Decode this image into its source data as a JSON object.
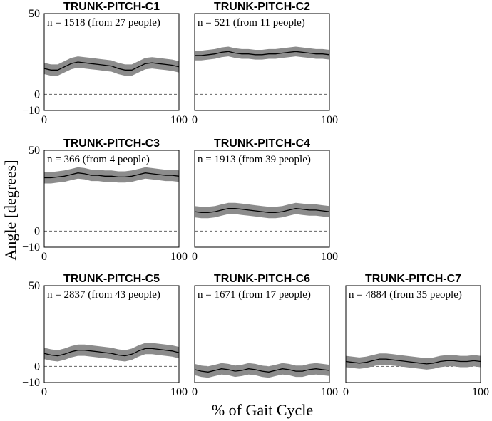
{
  "figure": {
    "ylabel": "Angle [degrees]",
    "xlabel": "% of Gait Cycle"
  },
  "colors": {
    "band": "#8c8c8c",
    "line": "#000000",
    "zero_line": "#666666",
    "frame": "#000000"
  },
  "chart_data": [
    {
      "type": "line",
      "title": "TRUNK-PITCH-C1",
      "annotation": "n = 1518 (from 27 people)",
      "xlim": [
        0,
        100
      ],
      "ylim": [
        -10,
        50
      ],
      "xticks": [
        "0",
        "100"
      ],
      "yticks": [
        "50",
        "0",
        "−10"
      ],
      "x": [
        0,
        5,
        10,
        15,
        20,
        25,
        30,
        35,
        40,
        45,
        50,
        55,
        60,
        65,
        70,
        75,
        80,
        85,
        90,
        95,
        100
      ],
      "series": [
        {
          "values": [
            16,
            15,
            15,
            17,
            19,
            20,
            19.5,
            19,
            18.5,
            18,
            17.5,
            16,
            15,
            15,
            17,
            19,
            19.5,
            19,
            18.5,
            18,
            17
          ],
          "band": 3.5
        }
      ],
      "zero_line": true,
      "grid": false
    },
    {
      "type": "line",
      "title": "TRUNK-PITCH-C2",
      "annotation": "n = 521 (from 11 people)",
      "xlim": [
        0,
        100
      ],
      "ylim": [
        -10,
        50
      ],
      "xticks": [
        "0",
        "100"
      ],
      "yticks": [],
      "x": [
        0,
        5,
        10,
        15,
        20,
        25,
        30,
        35,
        40,
        45,
        50,
        55,
        60,
        65,
        70,
        75,
        80,
        85,
        90,
        95,
        100
      ],
      "series": [
        {
          "values": [
            24,
            24,
            24.5,
            25,
            26,
            26.5,
            25.5,
            25,
            25,
            24.5,
            24.5,
            25,
            25,
            25.5,
            26,
            26.5,
            26,
            25.5,
            25,
            25,
            24.5
          ],
          "band": 3
        }
      ],
      "zero_line": true,
      "grid": false
    },
    {
      "type": "line",
      "title": "TRUNK-PITCH-C3",
      "annotation": "n = 366 (from 4 people)",
      "xlim": [
        0,
        100
      ],
      "ylim": [
        -10,
        50
      ],
      "xticks": [
        "0",
        "100"
      ],
      "yticks": [
        "50",
        "0",
        "−10"
      ],
      "x": [
        0,
        5,
        10,
        15,
        20,
        25,
        30,
        35,
        40,
        45,
        50,
        55,
        60,
        65,
        70,
        75,
        80,
        85,
        90,
        95,
        100
      ],
      "series": [
        {
          "values": [
            33,
            33,
            33.5,
            34,
            35,
            36,
            35.5,
            34.5,
            34.5,
            34,
            34,
            33.5,
            33.5,
            34,
            35,
            36,
            35.5,
            35,
            34.5,
            34.5,
            34
          ],
          "band": 3.5
        }
      ],
      "zero_line": true,
      "grid": false
    },
    {
      "type": "line",
      "title": "TRUNK-PITCH-C4",
      "annotation": "n = 1913 (from 39 people)",
      "xlim": [
        0,
        100
      ],
      "ylim": [
        -10,
        50
      ],
      "xticks": [
        "0",
        "100"
      ],
      "yticks": [],
      "x": [
        0,
        5,
        10,
        15,
        20,
        25,
        30,
        35,
        40,
        45,
        50,
        55,
        60,
        65,
        70,
        75,
        80,
        85,
        90,
        95,
        100
      ],
      "series": [
        {
          "values": [
            12,
            11.5,
            11.5,
            12,
            13,
            14,
            14,
            13.5,
            13,
            12.5,
            12,
            11.5,
            11.5,
            12,
            13,
            14,
            13.5,
            13,
            13,
            12.5,
            12
          ],
          "band": 3.5
        }
      ],
      "zero_line": true,
      "grid": false
    },
    {
      "type": "line",
      "title": "TRUNK-PITCH-C5",
      "annotation": "n = 2837 (from 43 people)",
      "xlim": [
        0,
        100
      ],
      "ylim": [
        -10,
        50
      ],
      "xticks": [
        "0",
        "100"
      ],
      "yticks": [
        "50",
        "0",
        "−10"
      ],
      "x": [
        0,
        5,
        10,
        15,
        20,
        25,
        30,
        35,
        40,
        45,
        50,
        55,
        60,
        65,
        70,
        75,
        80,
        85,
        90,
        95,
        100
      ],
      "series": [
        {
          "values": [
            8,
            7,
            6.5,
            7.5,
            9,
            10,
            10,
            9.5,
            9,
            8.5,
            8,
            7,
            6.5,
            7.5,
            9.5,
            11,
            11,
            10.5,
            10,
            9.5,
            8.5
          ],
          "band": 3.5
        }
      ],
      "zero_line": true,
      "grid": false
    },
    {
      "type": "line",
      "title": "TRUNK-PITCH-C6",
      "annotation": "n = 1671 (from 17 people)",
      "xlim": [
        0,
        100
      ],
      "ylim": [
        -10,
        50
      ],
      "xticks": [
        "0",
        "100"
      ],
      "yticks": [],
      "x": [
        0,
        5,
        10,
        15,
        20,
        25,
        30,
        35,
        40,
        45,
        50,
        55,
        60,
        65,
        70,
        75,
        80,
        85,
        90,
        95,
        100
      ],
      "series": [
        {
          "values": [
            -2,
            -3,
            -3.5,
            -2.5,
            -1.5,
            -2,
            -3,
            -2.5,
            -1.5,
            -2,
            -3,
            -3.5,
            -2.5,
            -1.5,
            -2,
            -3,
            -3,
            -2,
            -1.5,
            -2,
            -2.5
          ],
          "band": 3.5
        }
      ],
      "zero_line": true,
      "grid": false
    },
    {
      "type": "line",
      "title": "TRUNK-PITCH-C7",
      "annotation": "n = 4884 (from 35 people)",
      "xlim": [
        0,
        100
      ],
      "ylim": [
        -10,
        50
      ],
      "xticks": [
        "0",
        "100"
      ],
      "yticks": [],
      "x": [
        0,
        5,
        10,
        15,
        20,
        25,
        30,
        35,
        40,
        45,
        50,
        55,
        60,
        65,
        70,
        75,
        80,
        85,
        90,
        95,
        100
      ],
      "series": [
        {
          "values": [
            3,
            2.5,
            2,
            2.5,
            3.5,
            4.5,
            4.5,
            4,
            3.5,
            3,
            2.5,
            2,
            1.5,
            2,
            3,
            3.5,
            3.5,
            3,
            3,
            3.5,
            3
          ],
          "band": 3.5
        }
      ],
      "zero_line": true,
      "grid": false
    }
  ]
}
